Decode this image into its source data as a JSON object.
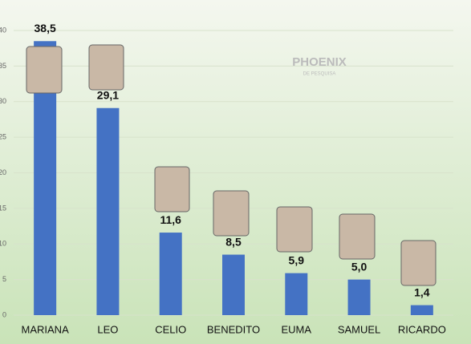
{
  "chart_data": {
    "type": "bar",
    "categories": [
      "MARIANA",
      "LEO",
      "CELIO",
      "BENEDITO",
      "EUMA",
      "SAMUEL",
      "RICARDO"
    ],
    "values": [
      38.5,
      29.1,
      11.6,
      8.5,
      5.9,
      5.0,
      1.4
    ],
    "value_labels": [
      "38,5",
      "29,1",
      "11,6",
      "8,5",
      "5,9",
      "5,0",
      "1,4"
    ],
    "color": "#4472c4",
    "ylim": [
      0,
      40
    ],
    "yticks": [
      0,
      5,
      10,
      15,
      20,
      25,
      30,
      35,
      40
    ],
    "grid": true,
    "watermark": "PHOENIX",
    "watermark_sub": "DE PESQUISA"
  }
}
